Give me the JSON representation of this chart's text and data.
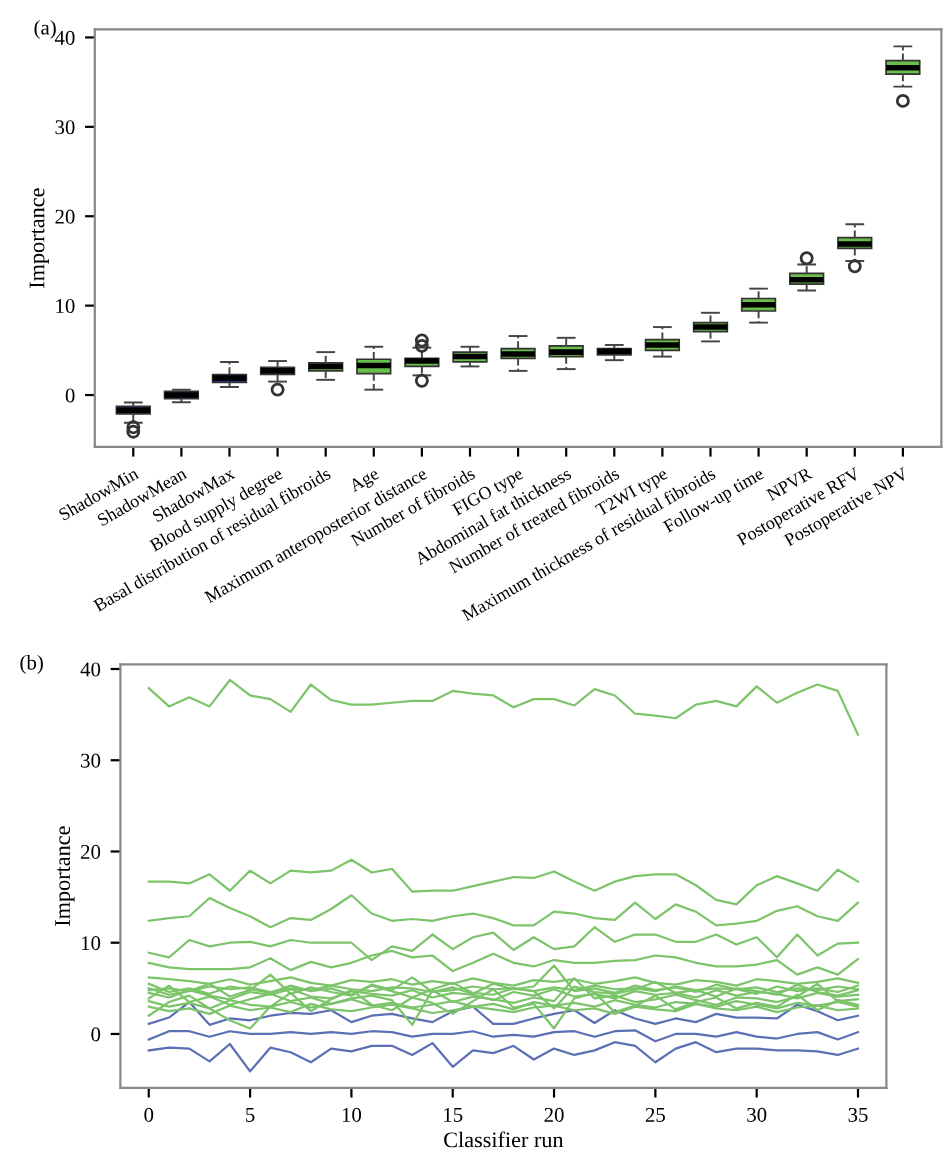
{
  "chart_data": [
    {
      "type": "box",
      "title": "(a)",
      "ylabel": "Importance",
      "ylim": [
        -5.8,
        40.9
      ],
      "yticks": [
        0,
        10,
        20,
        30,
        40
      ],
      "grid": false,
      "legend": false,
      "categories": [
        "ShadowMin",
        "ShadowMean",
        "ShadowMax",
        "Blood supply degree",
        "Basal distribution of residual fibroids",
        "Age",
        "Maximum anteroposterior distance",
        "Number of fibroids",
        "FIGO type",
        "Abdominal fat thickness",
        "Number of treated fibroids",
        "T2WI type",
        "Maximum thickness of residual fibroids",
        "Follow-up time",
        "NPVR",
        "Postoperative RFV",
        "Postoperative NPV"
      ],
      "colors": [
        "#1f2f7a",
        "#1f2f7a",
        "#1f2f7a",
        "#6abf4b",
        "#6abf4b",
        "#6abf4b",
        "#6abf4b",
        "#6abf4b",
        "#6abf4b",
        "#6abf4b",
        "#6abf4b",
        "#6abf4b",
        "#6abf4b",
        "#6abf4b",
        "#6abf4b",
        "#6abf4b",
        "#6abf4b"
      ],
      "boxes": [
        {
          "low": -3.1,
          "q1": -2.1,
          "median": -1.7,
          "q3": -1.26,
          "high": -0.84,
          "outliers": [
            -3.6,
            -4.1
          ]
        },
        {
          "low": -0.8,
          "q1": -0.4,
          "median": 0,
          "q3": 0.4,
          "high": 0.6
        },
        {
          "low": 0.9,
          "q1": 1.4,
          "median": 1.9,
          "q3": 2.3,
          "high": 3.7
        },
        {
          "low": 1.5,
          "q1": 2.3,
          "median": 2.7,
          "q3": 3.1,
          "high": 3.8,
          "outliers": [
            0.6
          ]
        },
        {
          "low": 1.7,
          "q1": 2.7,
          "median": 3.2,
          "q3": 3.6,
          "high": 4.8
        },
        {
          "low": 0.6,
          "q1": 2.4,
          "median": 3.3,
          "q3": 4.0,
          "high": 5.4
        },
        {
          "low": 2.2,
          "q1": 3.2,
          "median": 3.8,
          "q3": 4.1,
          "high": 5.3,
          "outliers": [
            6.1,
            5.5,
            1.6
          ]
        },
        {
          "low": 3.2,
          "q1": 3.7,
          "median": 4.3,
          "q3": 4.8,
          "high": 5.4
        },
        {
          "low": 2.7,
          "q1": 4.1,
          "median": 4.6,
          "q3": 5.2,
          "high": 6.6
        },
        {
          "low": 2.9,
          "q1": 4.3,
          "median": 4.8,
          "q3": 5.5,
          "high": 6.4
        },
        {
          "low": 3.9,
          "q1": 4.5,
          "median": 4.9,
          "q3": 5.2,
          "high": 5.6
        },
        {
          "low": 4.3,
          "q1": 5.0,
          "median": 5.6,
          "q3": 6.2,
          "high": 7.6
        },
        {
          "low": 6.0,
          "q1": 7.1,
          "median": 7.6,
          "q3": 8.1,
          "high": 9.2
        },
        {
          "low": 8.1,
          "q1": 9.4,
          "median": 10.1,
          "q3": 10.8,
          "high": 11.9
        },
        {
          "low": 11.7,
          "q1": 12.4,
          "median": 12.9,
          "q3": 13.6,
          "high": 14.6,
          "outliers": [
            15.3
          ]
        },
        {
          "low": 15.0,
          "q1": 16.4,
          "median": 16.9,
          "q3": 17.6,
          "high": 19.1,
          "outliers": [
            14.4
          ]
        },
        {
          "low": 34.5,
          "q1": 35.9,
          "median": 36.6,
          "q3": 37.4,
          "high": 39.0,
          "outliers": [
            32.9
          ]
        }
      ]
    },
    {
      "type": "line",
      "title": "(b)",
      "xlabel": "Classifier run",
      "ylabel": "Importance",
      "xlim": [
        -1.4,
        36.4
      ],
      "xticks": [
        0,
        5,
        10,
        15,
        20,
        25,
        30,
        35
      ],
      "ylim": [
        -5.9,
        40.5
      ],
      "yticks": [
        0,
        10,
        20,
        30,
        40
      ],
      "grid": false,
      "legend": false,
      "marker": "none",
      "line_style": "solid",
      "x": [
        0,
        1,
        2,
        3,
        4,
        5,
        6,
        7,
        8,
        9,
        10,
        11,
        12,
        13,
        14,
        15,
        16,
        17,
        18,
        19,
        20,
        21,
        22,
        23,
        24,
        25,
        26,
        27,
        28,
        29,
        30,
        31,
        32,
        33,
        34,
        35
      ],
      "series": [
        {
          "color": "#5b6fb5",
          "values": [
            -1.8,
            -1.5,
            -1.6,
            -3.0,
            -1.1,
            -4.1,
            -1.5,
            -2.0,
            -3.1,
            -1.6,
            -1.9,
            -1.3,
            -1.3,
            -2.3,
            -1.0,
            -3.6,
            -1.8,
            -2.1,
            -1.3,
            -2.8,
            -1.6,
            -2.3,
            -1.8,
            -0.9,
            -1.3,
            -3.1,
            -1.6,
            -0.9,
            -2.0,
            -1.6,
            -1.6,
            -1.8,
            -1.8,
            -1.9,
            -2.3,
            -1.6
          ]
        },
        {
          "color": "#5b6fb5",
          "values": [
            -0.6,
            0.3,
            0.3,
            -0.3,
            0.3,
            0,
            0,
            0.2,
            0,
            0.2,
            0,
            0.3,
            0.2,
            -0.3,
            0,
            0,
            0.3,
            -0.3,
            -0.1,
            -0.3,
            0.2,
            0.3,
            -0.3,
            0.3,
            0.4,
            -0.8,
            0,
            0,
            -0.3,
            0.2,
            -0.3,
            -0.5,
            0,
            0.2,
            -0.6,
            0.2
          ]
        },
        {
          "color": "#5b6fb5",
          "values": [
            1.1,
            1.8,
            3.5,
            1.0,
            1.7,
            1.5,
            2.0,
            2.3,
            2.2,
            2.6,
            1.3,
            2.0,
            2.2,
            1.7,
            1.3,
            2.5,
            3.0,
            1.1,
            1.1,
            1.7,
            2.2,
            2.6,
            1.2,
            2.6,
            1.7,
            1.1,
            1.7,
            1.3,
            2.2,
            1.8,
            1.8,
            1.7,
            3.2,
            2.5,
            1.5,
            2.0
          ]
        },
        {
          "color": "#7cc46a",
          "values": [
            3.0,
            2.5,
            2.8,
            2.2,
            3.1,
            2.6,
            2.9,
            2.4,
            3.3,
            2.7,
            2.5,
            2.9,
            3.2,
            2.8,
            2.3,
            2.6,
            3.0,
            2.7,
            2.4,
            2.9,
            3.1,
            2.6,
            2.8,
            2.2,
            3.0,
            2.7,
            2.5,
            3.3,
            2.8,
            2.6,
            3.0,
            2.4,
            2.9,
            3.1,
            2.6,
            2.8
          ]
        },
        {
          "color": "#7cc46a",
          "values": [
            3.6,
            3.0,
            3.4,
            2.8,
            3.7,
            3.2,
            3.0,
            3.5,
            2.9,
            3.3,
            3.8,
            3.1,
            3.4,
            2.9,
            3.2,
            3.6,
            3.0,
            3.3,
            2.7,
            3.5,
            3.1,
            3.4,
            3.0,
            3.7,
            3.2,
            2.9,
            3.5,
            3.3,
            3.0,
            3.6,
            3.2,
            2.8,
            3.4,
            3.1,
            3.5,
            3.0
          ]
        },
        {
          "color": "#7cc46a",
          "values": [
            2.0,
            3.5,
            4.2,
            2.8,
            1.5,
            0.6,
            3.0,
            4.5,
            2.5,
            3.8,
            4.8,
            3.2,
            2.6,
            4.0,
            3.4,
            2.2,
            3.6,
            4.9,
            2.9,
            3.3,
            0.6,
            3.9,
            4.5,
            2.4,
            3.1,
            4.2,
            2.7,
            3.5,
            4.0,
            2.8,
            3.4,
            3.0,
            4.3,
            2.6,
            3.7,
            3.2
          ]
        },
        {
          "color": "#7cc46a",
          "values": [
            3.9,
            5.3,
            3.5,
            4.1,
            3.2,
            3.8,
            4.4,
            3.6,
            4.0,
            3.3,
            3.9,
            4.2,
            3.7,
            1.0,
            4.8,
            3.5,
            4.1,
            3.8,
            3.4,
            4.0,
            3.6,
            6.1,
            3.9,
            4.2,
            3.5,
            3.8,
            4.3,
            3.7,
            3.2,
            4.0,
            3.9,
            3.5,
            4.1,
            5.5,
            3.6,
            3.8
          ]
        },
        {
          "color": "#7cc46a",
          "values": [
            4.5,
            4.0,
            4.8,
            4.2,
            3.8,
            4.6,
            4.3,
            4.9,
            4.1,
            3.9,
            4.7,
            4.4,
            4.2,
            4.8,
            4.0,
            4.5,
            4.3,
            3.7,
            4.6,
            4.2,
            4.9,
            4.1,
            4.4,
            3.9,
            4.7,
            4.3,
            4.5,
            4.0,
            4.8,
            4.2,
            4.6,
            4.4,
            3.9,
            4.5,
            4.1,
            4.3
          ]
        },
        {
          "color": "#7cc46a",
          "values": [
            5.0,
            4.3,
            4.7,
            5.5,
            4.1,
            4.8,
            6.5,
            4.4,
            5.1,
            4.6,
            4.2,
            5.3,
            4.7,
            4.0,
            4.9,
            5.6,
            4.5,
            4.3,
            5.0,
            4.7,
            2.8,
            5.2,
            4.6,
            4.4,
            4.9,
            5.7,
            4.5,
            4.8,
            4.1,
            5.0,
            4.7,
            4.3,
            5.4,
            4.6,
            4.2,
            4.8
          ]
        },
        {
          "color": "#7cc46a",
          "values": [
            5.5,
            4.6,
            5.0,
            4.4,
            5.2,
            4.9,
            4.5,
            5.3,
            4.7,
            5.0,
            4.3,
            5.4,
            4.8,
            6.2,
            4.6,
            5.1,
            4.4,
            5.5,
            4.9,
            5.2,
            7.5,
            4.7,
            5.0,
            4.5,
            5.3,
            4.8,
            5.1,
            4.6,
            5.4,
            4.9,
            4.4,
            5.2,
            4.7,
            5.0,
            4.6,
            5.3
          ]
        },
        {
          "color": "#7cc46a",
          "values": [
            4.8,
            5.0,
            4.7,
            5.2,
            4.9,
            5.1,
            4.6,
            5.0,
            4.8,
            5.3,
            4.9,
            4.7,
            5.1,
            5.0,
            4.6,
            4.8,
            5.2,
            4.9,
            5.0,
            4.7,
            5.1,
            4.8,
            5.3,
            4.9,
            5.0,
            4.7,
            5.2,
            4.8,
            5.0,
            4.9,
            5.1,
            4.6,
            5.0,
            4.8,
            5.2,
            4.9
          ]
        },
        {
          "color": "#7cc46a",
          "values": [
            6.2,
            6.0,
            5.8,
            5.5,
            6.0,
            5.4,
            5.8,
            6.2,
            5.6,
            5.3,
            5.9,
            5.7,
            6.0,
            5.4,
            5.8,
            5.5,
            6.1,
            5.6,
            5.3,
            5.9,
            5.7,
            6.0,
            5.5,
            5.8,
            6.2,
            5.6,
            5.4,
            5.9,
            5.7,
            5.3,
            6.0,
            5.8,
            5.5,
            5.7,
            6.1,
            5.6
          ]
        },
        {
          "color": "#7cc46a",
          "values": [
            7.8,
            7.3,
            7.1,
            7.1,
            7.1,
            7.3,
            8.3,
            7.0,
            7.9,
            7.3,
            7.8,
            8.6,
            9.1,
            8.4,
            8.6,
            6.9,
            7.8,
            8.8,
            7.8,
            7.4,
            8.1,
            7.8,
            7.8,
            8.0,
            8.1,
            8.6,
            8.4,
            7.8,
            7.4,
            7.4,
            7.6,
            8.1,
            6.5,
            7.3,
            6.5,
            8.2
          ]
        },
        {
          "color": "#7cc46a",
          "values": [
            8.9,
            8.4,
            10.3,
            9.6,
            10.0,
            10.1,
            9.6,
            10.3,
            10.0,
            10.0,
            10.0,
            8.1,
            9.6,
            9.1,
            10.9,
            9.3,
            10.6,
            11.1,
            9.2,
            10.6,
            9.3,
            9.6,
            11.7,
            10.1,
            10.9,
            10.9,
            10.1,
            10.1,
            10.9,
            9.8,
            10.6,
            8.4,
            10.9,
            8.6,
            9.9,
            10.0
          ]
        },
        {
          "color": "#7cc46a",
          "values": [
            12.4,
            12.7,
            12.9,
            14.9,
            13.8,
            12.9,
            11.7,
            12.7,
            12.5,
            13.7,
            15.2,
            13.2,
            12.4,
            12.6,
            12.4,
            12.9,
            13.2,
            12.7,
            11.9,
            11.9,
            13.4,
            13.2,
            12.7,
            12.5,
            14.4,
            12.6,
            14.2,
            13.4,
            11.9,
            12.1,
            12.4,
            13.5,
            14.0,
            12.9,
            12.4,
            14.4
          ]
        },
        {
          "color": "#7cc46a",
          "values": [
            16.7,
            16.7,
            16.5,
            17.5,
            15.7,
            17.9,
            16.5,
            17.9,
            17.7,
            17.9,
            19.1,
            17.7,
            18.1,
            15.6,
            15.7,
            15.7,
            16.2,
            16.7,
            17.2,
            17.1,
            17.8,
            16.7,
            15.7,
            16.7,
            17.3,
            17.5,
            17.5,
            16.3,
            14.7,
            14.2,
            16.3,
            17.3,
            16.5,
            15.7,
            18.0,
            16.7
          ]
        },
        {
          "color": "#7cc46a",
          "values": [
            37.9,
            35.9,
            36.9,
            35.9,
            38.8,
            37.1,
            36.7,
            35.3,
            38.3,
            36.6,
            36.1,
            36.1,
            36.3,
            36.5,
            36.5,
            37.6,
            37.3,
            37.1,
            35.8,
            36.7,
            36.7,
            36.0,
            37.8,
            37.1,
            35.1,
            34.9,
            34.6,
            36.1,
            36.5,
            35.9,
            38.1,
            36.3,
            37.4,
            38.3,
            37.6,
            32.8
          ]
        }
      ]
    }
  ]
}
